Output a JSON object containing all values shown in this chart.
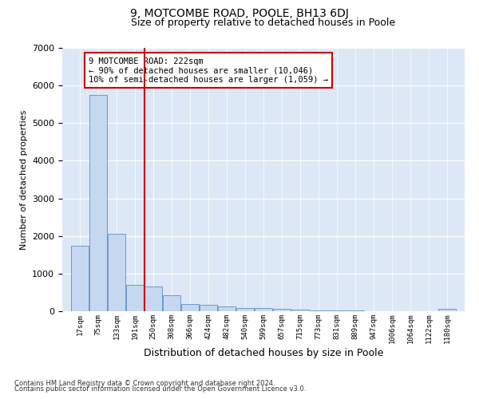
{
  "title": "9, MOTCOMBE ROAD, POOLE, BH13 6DJ",
  "subtitle": "Size of property relative to detached houses in Poole",
  "xlabel": "Distribution of detached houses by size in Poole",
  "ylabel": "Number of detached properties",
  "footnote1": "Contains HM Land Registry data © Crown copyright and database right 2024.",
  "footnote2": "Contains public sector information licensed under the Open Government Licence v3.0.",
  "annotation_line1": "9 MOTCOMBE ROAD: 222sqm",
  "annotation_line2": "← 90% of detached houses are smaller (10,046)",
  "annotation_line3": "10% of semi-detached houses are larger (1,059) →",
  "bar_color": "#c5d8f0",
  "bar_edge_color": "#5a90c8",
  "vline_color": "#cc0000",
  "vline_x": 222,
  "background_color": "#dce8f5",
  "categories": [
    17,
    75,
    133,
    191,
    250,
    308,
    366,
    424,
    482,
    540,
    599,
    657,
    715,
    773,
    831,
    889,
    947,
    1006,
    1064,
    1122,
    1180
  ],
  "cat_labels": [
    "17sqm",
    "75sqm",
    "133sqm",
    "191sqm",
    "250sqm",
    "308sqm",
    "366sqm",
    "424sqm",
    "482sqm",
    "540sqm",
    "599sqm",
    "657sqm",
    "715sqm",
    "773sqm",
    "831sqm",
    "889sqm",
    "947sqm",
    "1006sqm",
    "1064sqm",
    "1122sqm",
    "1180sqm"
  ],
  "values": [
    1750,
    5750,
    2050,
    700,
    650,
    420,
    200,
    170,
    120,
    80,
    80,
    60,
    50,
    30,
    20,
    15,
    10,
    10,
    5,
    5,
    60
  ],
  "ylim": [
    0,
    7000
  ],
  "yticks": [
    0,
    1000,
    2000,
    3000,
    4000,
    5000,
    6000,
    7000
  ]
}
